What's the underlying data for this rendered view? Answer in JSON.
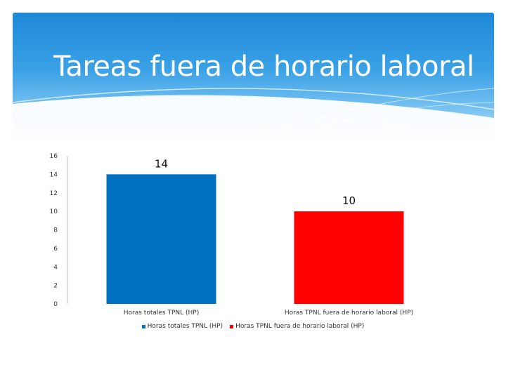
{
  "slide": {
    "title": "Tareas fuera de horario laboral"
  },
  "colors": {
    "series1": "#0070c0",
    "series2": "#ff0000"
  },
  "chart_data": {
    "type": "bar",
    "categories": [
      "Horas totales TPNL (HP)",
      "Horas TPNL fuera de horario laboral (HP)"
    ],
    "values": [
      14,
      10
    ],
    "data_labels": [
      "14",
      "10"
    ],
    "yticks": [
      "0",
      "2",
      "4",
      "6",
      "8",
      "10",
      "12",
      "14",
      "16"
    ],
    "ylim": [
      0,
      16
    ],
    "legend": [
      "Horas totales TPNL (HP)",
      "Horas TPNL fuera de horario laboral (HP)"
    ],
    "legend_position": "bottom",
    "grid": false
  }
}
